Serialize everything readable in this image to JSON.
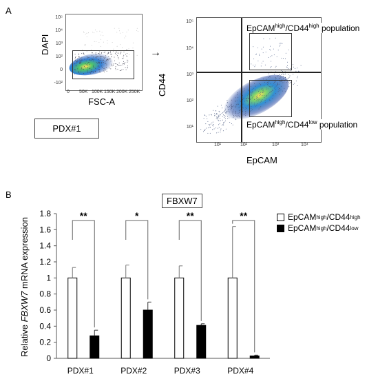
{
  "panel_a": {
    "letter": "A",
    "left_plot": {
      "ylabel": "DAPI",
      "xlabel": "FSC-A",
      "y_ticks": [
        "10⁵",
        "10⁴",
        "10³",
        "10²",
        "0",
        "-10²"
      ],
      "x_ticks": [
        "0",
        "50K",
        "100K",
        "150K",
        "200K",
        "250K"
      ]
    },
    "right_plot": {
      "ylabel": "CD44",
      "xlabel": "EpCAM",
      "y_ticks": [
        "10⁵",
        "10⁴",
        "10³",
        "10²",
        "10¹"
      ],
      "x_ticks": [
        "10¹",
        "10²",
        "10³",
        "10⁴"
      ]
    },
    "sample_label": "PDX#1",
    "pop_high": {
      "prefix": "EpCAM",
      "sup1": "high",
      "mid": "/CD44",
      "sup2": "high",
      "suffix": " population"
    },
    "pop_low": {
      "prefix": "EpCAM",
      "sup1": "high",
      "mid": "/CD44",
      "sup2": "low",
      "suffix": " population"
    },
    "arrow": "→"
  },
  "panel_b": {
    "letter": "B",
    "gene_box": "FBXW7",
    "ylabel_pre": "Relative ",
    "ylabel_gene": "FBXW7",
    "ylabel_post": " mRNA expression",
    "legend": [
      {
        "prefix": "EpCAM",
        "sup1": "high",
        "mid": "/CD44",
        "sup2": "high",
        "color": "#ffffff"
      },
      {
        "prefix": "EpCAM",
        "sup1": "high",
        "mid": "/CD44",
        "sup2": "low",
        "color": "#000000"
      }
    ],
    "significance": [
      "**",
      "*",
      "**",
      "**"
    ]
  },
  "chart_data": {
    "type": "bar",
    "categories": [
      "PDX#1",
      "PDX#2",
      "PDX#3",
      "PDX#4"
    ],
    "series": [
      {
        "name": "EpCAMhigh/CD44high",
        "values": [
          1.0,
          1.0,
          1.0,
          1.0
        ],
        "errors": [
          0.13,
          0.16,
          0.15,
          0.64
        ],
        "color": "#ffffff"
      },
      {
        "name": "EpCAMhigh/CD44low",
        "values": [
          0.28,
          0.6,
          0.41,
          0.03
        ],
        "errors": [
          0.07,
          0.1,
          0.02,
          0.01
        ],
        "color": "#000000"
      }
    ],
    "ylim": [
      0,
      1.8
    ],
    "yticks": [
      "0",
      "0.2",
      "0.4",
      "0.6",
      "0.8",
      "1",
      "1.2",
      "1.4",
      "1.6",
      "1.8"
    ]
  }
}
